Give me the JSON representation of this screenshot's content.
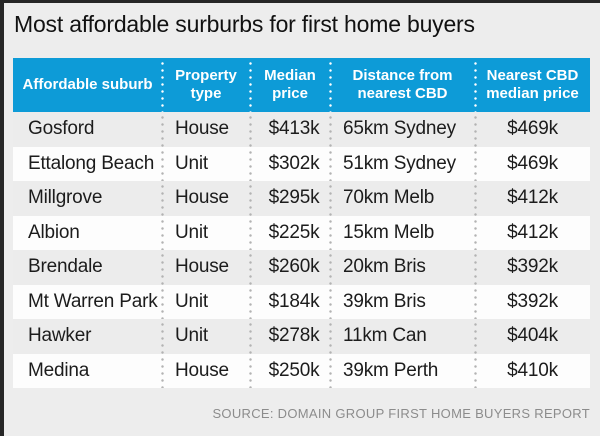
{
  "title": "Most affordable surburbs for first home buyers",
  "source": "SOURCE: DOMAIN GROUP FIRST HOME BUYERS REPORT",
  "colors": {
    "page_bg": "#ededed",
    "frame": "#262626",
    "header_bg": "#0d9bd7",
    "header_text": "#ffffff",
    "row_odd": "#ececec",
    "row_even": "#fdfdfd",
    "body_text": "#1c1c1c",
    "dot_body": "#b3b3b3",
    "dot_header": "#ffffff",
    "source_text": "#8c8c8c"
  },
  "chart_data": {
    "type": "table",
    "title": "Most affordable surburbs for first home buyers",
    "columns": [
      "Affordable suburb",
      "Property type",
      "Median price",
      "Distance from nearest CBD",
      "Nearest CBD median price"
    ],
    "rows": [
      [
        "Gosford",
        "House",
        "$413k",
        "65km Sydney",
        "$469k"
      ],
      [
        "Ettalong Beach",
        "Unit",
        "$302k",
        "51km Sydney",
        "$469k"
      ],
      [
        "Millgrove",
        "House",
        "$295k",
        "70km Melb",
        "$412k"
      ],
      [
        "Albion",
        "Unit",
        "$225k",
        "15km Melb",
        "$412k"
      ],
      [
        "Brendale",
        "House",
        "$260k",
        "20km Bris",
        "$392k"
      ],
      [
        "Mt Warren Park",
        "Unit",
        "$184k",
        "39km Bris",
        "$392k"
      ],
      [
        "Hawker",
        "Unit",
        "$278k",
        "11km Can",
        "$404k"
      ],
      [
        "Medina",
        "House",
        "$250k",
        "39km Perth",
        "$410k"
      ]
    ]
  }
}
